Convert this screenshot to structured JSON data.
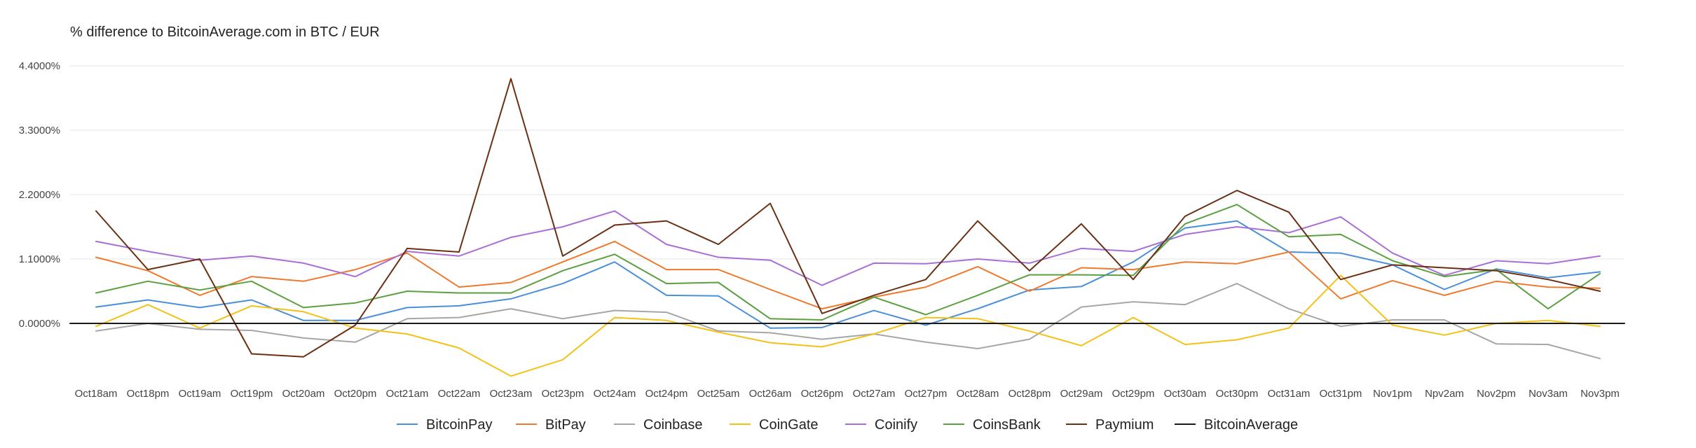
{
  "chart_data": {
    "type": "line",
    "title": "% difference to BitcoinAverage.com in BTC / EUR",
    "xlabel": "",
    "ylabel": "",
    "ylim": [
      -0.9,
      4.4
    ],
    "y_ticks": [
      "0.0000%",
      "1.1000%",
      "2.2000%",
      "3.3000%",
      "4.4000%"
    ],
    "y_tick_values": [
      0,
      1.1,
      2.2,
      3.3,
      4.4
    ],
    "grid": true,
    "legend_position": "bottom",
    "categories": [
      "Oct18am",
      "Oct18pm",
      "Oct19am",
      "Oct19pm",
      "Oct20am",
      "Oct20pm",
      "Oct21am",
      "Oct22am",
      "Oct23am",
      "Oct23pm",
      "Oct24am",
      "Oct24pm",
      "Oct25am",
      "Oct26am",
      "Oct26pm",
      "Oct27am",
      "Oct27pm",
      "Oct28am",
      "Oct28pm",
      "Oct29am",
      "Oct29pm",
      "Oct30am",
      "Oct30pm",
      "Oct31am",
      "Oct31pm",
      "Nov1pm",
      "Npv2am",
      "Nov2pm",
      "Nov3am",
      "Nov3pm"
    ],
    "series": [
      {
        "name": "BitcoinPay",
        "color": "#4a90d9",
        "values": [
          0.28,
          0.4,
          0.27,
          0.4,
          0.05,
          0.05,
          0.27,
          0.3,
          0.42,
          0.68,
          1.05,
          0.48,
          0.47,
          -0.08,
          -0.07,
          0.22,
          -0.03,
          0.25,
          0.57,
          0.63,
          1.05,
          1.63,
          1.75,
          1.22,
          1.2,
          1.0,
          0.58,
          0.93,
          0.78,
          0.88
        ]
      },
      {
        "name": "BitPay",
        "color": "#ef7a2e",
        "values": [
          1.13,
          0.9,
          0.48,
          0.8,
          0.72,
          0.92,
          1.2,
          0.62,
          0.7,
          1.05,
          1.4,
          0.92,
          0.92,
          0.58,
          0.25,
          0.45,
          0.62,
          0.97,
          0.55,
          0.95,
          0.92,
          1.05,
          1.02,
          1.22,
          0.42,
          0.73,
          0.48,
          0.72,
          0.62,
          0.6
        ]
      },
      {
        "name": "Coinbase",
        "color": "#a6a6a6",
        "values": [
          -0.13,
          0.0,
          -0.1,
          -0.12,
          -0.25,
          -0.32,
          0.08,
          0.1,
          0.25,
          0.08,
          0.22,
          0.19,
          -0.13,
          -0.16,
          -0.27,
          -0.18,
          -0.32,
          -0.43,
          -0.27,
          0.28,
          0.37,
          0.32,
          0.68,
          0.25,
          -0.05,
          0.06,
          0.06,
          -0.35,
          -0.36,
          -0.6
        ]
      },
      {
        "name": "CoinGate",
        "color": "#f4c217",
        "values": [
          -0.05,
          0.32,
          -0.08,
          0.3,
          0.2,
          -0.08,
          -0.18,
          -0.42,
          -0.9,
          -0.62,
          0.1,
          0.05,
          -0.15,
          -0.33,
          -0.4,
          -0.18,
          0.1,
          0.08,
          -0.13,
          -0.38,
          0.1,
          -0.36,
          -0.28,
          -0.08,
          0.82,
          -0.03,
          -0.2,
          0.0,
          0.05,
          -0.05
        ]
      },
      {
        "name": "Coinify",
        "color": "#a86fd6",
        "values": [
          1.4,
          1.23,
          1.08,
          1.15,
          1.03,
          0.8,
          1.23,
          1.15,
          1.47,
          1.65,
          1.92,
          1.35,
          1.13,
          1.08,
          0.65,
          1.03,
          1.02,
          1.1,
          1.03,
          1.28,
          1.23,
          1.52,
          1.65,
          1.55,
          1.82,
          1.2,
          0.82,
          1.07,
          1.02,
          1.15
        ]
      },
      {
        "name": "CoinsBank",
        "color": "#5aa040",
        "values": [
          0.52,
          0.72,
          0.57,
          0.72,
          0.27,
          0.35,
          0.55,
          0.52,
          0.52,
          0.9,
          1.18,
          0.68,
          0.7,
          0.08,
          0.06,
          0.45,
          0.15,
          0.48,
          0.83,
          0.83,
          0.82,
          1.7,
          2.03,
          1.48,
          1.52,
          1.07,
          0.8,
          0.92,
          0.25,
          0.85
        ]
      },
      {
        "name": "Paymium",
        "color": "#6b2f12",
        "values": [
          1.92,
          0.92,
          1.1,
          -0.52,
          -0.57,
          -0.03,
          1.28,
          1.22,
          4.18,
          1.15,
          1.68,
          1.75,
          1.35,
          2.05,
          0.17,
          0.48,
          0.75,
          1.75,
          0.9,
          1.7,
          0.75,
          1.83,
          2.27,
          1.9,
          0.75,
          1.0,
          0.95,
          0.9,
          0.75,
          0.55
        ]
      },
      {
        "name": "BitcoinAverage",
        "color": "#1a1a1a",
        "values": [
          0,
          0,
          0,
          0,
          0,
          0,
          0,
          0,
          0,
          0,
          0,
          0,
          0,
          0,
          0,
          0,
          0,
          0,
          0,
          0,
          0,
          0,
          0,
          0,
          0,
          0,
          0,
          0,
          0,
          0
        ]
      }
    ]
  }
}
